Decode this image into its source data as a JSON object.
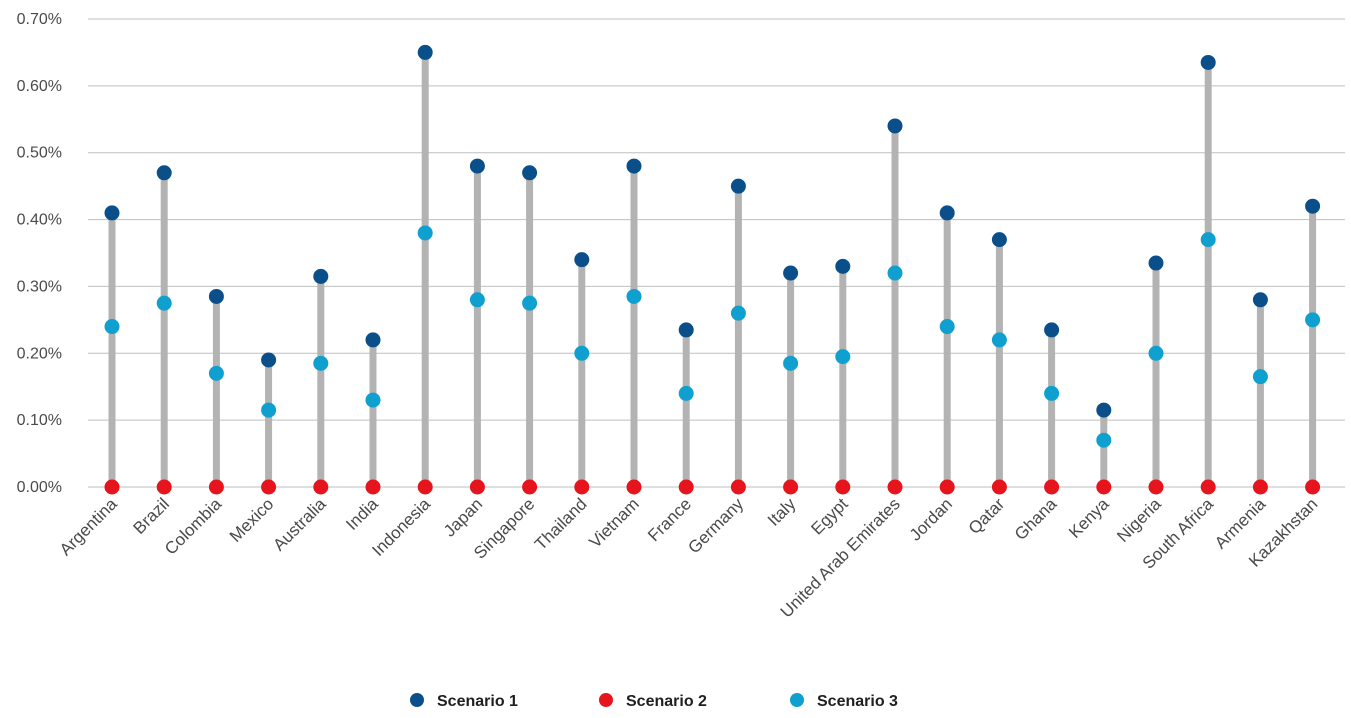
{
  "chart_data": {
    "type": "scatter",
    "subtype": "dot-plot-with-range-stems",
    "title": "",
    "xlabel": "",
    "ylabel": "",
    "ylim": [
      0,
      0.7
    ],
    "y_ticks": [
      "0.00%",
      "0.10%",
      "0.20%",
      "0.30%",
      "0.40%",
      "0.50%",
      "0.60%",
      "0.70%"
    ],
    "grid": "horizontal",
    "legend_position": "bottom-center",
    "categories": [
      "Argentina",
      "Brazil",
      "Colombia",
      "Mexico",
      "Australia",
      "India",
      "Indonesia",
      "Japan",
      "Singapore",
      "Thailand",
      "Vietnam",
      "France",
      "Germany",
      "Italy",
      "Egypt",
      "United Arab Emirates",
      "Jordan",
      "Qatar",
      "Ghana",
      "Kenya",
      "Nigeria",
      "South Africa",
      "Armenia",
      "Kazakhstan"
    ],
    "series": [
      {
        "name": "Scenario 1",
        "color": "#0b4f8a",
        "values": [
          0.41,
          0.47,
          0.285,
          0.19,
          0.315,
          0.22,
          0.65,
          0.48,
          0.47,
          0.34,
          0.48,
          0.235,
          0.45,
          0.32,
          0.33,
          0.54,
          0.41,
          0.37,
          0.235,
          0.115,
          0.335,
          0.635,
          0.28,
          0.42
        ]
      },
      {
        "name": "Scenario 2",
        "color": "#e5141d",
        "values": [
          0,
          0,
          0,
          0,
          0,
          0,
          0,
          0,
          0,
          0,
          0,
          0,
          0,
          0,
          0,
          0,
          0,
          0,
          0,
          0,
          0,
          0,
          0,
          0
        ]
      },
      {
        "name": "Scenario 3",
        "color": "#0fa0d0",
        "values": [
          0.24,
          0.275,
          0.17,
          0.115,
          0.185,
          0.13,
          0.38,
          0.28,
          0.275,
          0.2,
          0.285,
          0.14,
          0.26,
          0.185,
          0.195,
          0.32,
          0.24,
          0.22,
          0.14,
          0.07,
          0.2,
          0.37,
          0.165,
          0.25
        ]
      }
    ],
    "stem_color": "#b3b3b3",
    "grid_color": "#bfbfbf"
  }
}
